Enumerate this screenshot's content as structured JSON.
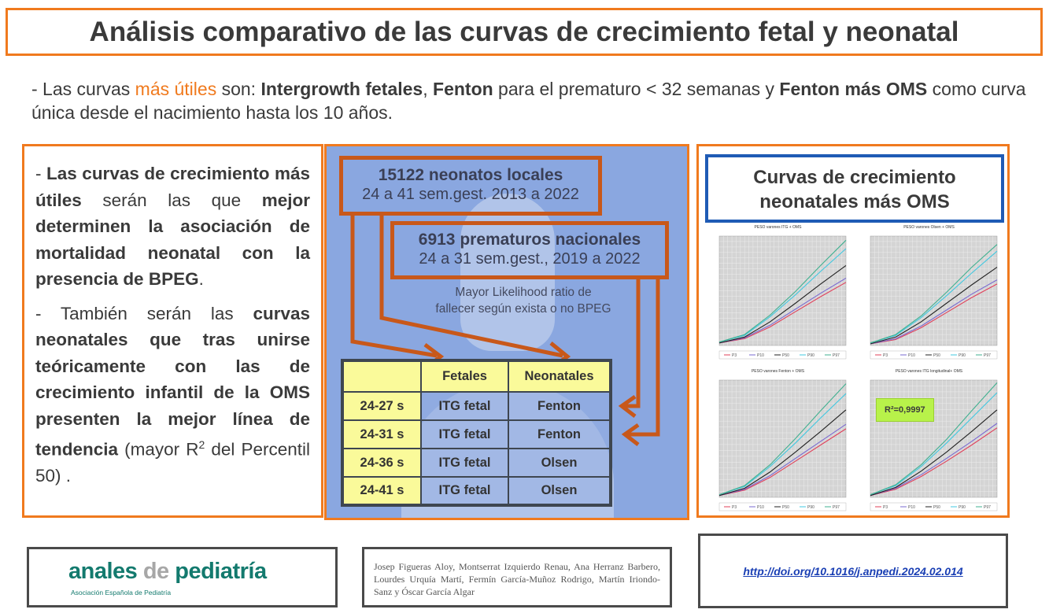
{
  "title": "Análisis comparativo de las curvas de crecimiento fetal y neonatal",
  "intro": {
    "p1": " - Las curvas ",
    "highlight": "más útiles",
    "p2": " son: ",
    "b1": "Intergrowth fetales",
    "p3": ", ",
    "b2": "Fenton",
    "p4": " para el prematuro < 32 semanas y ",
    "b3": "Fenton más OMS",
    "p5": " como curva única desde el nacimiento hasta los 10 años."
  },
  "left": {
    "a1": "- ",
    "a2": "Las curvas de crecimiento más útiles",
    "a3": " serán las que ",
    "a4": "mejor determinen la asociación de mortalidad neonatal con la presencia de BPEG",
    "a5": ".",
    "b1": "- También serán las ",
    "b2": "curvas neonatales que tras unirse teóricamente con las de crecimiento infantil de la OMS presenten la mejor línea de tendencia",
    "b3": " (mayor R",
    "b_sup": "2",
    "b4": " del Percentil 50) ."
  },
  "middle": {
    "box1": {
      "bold": "15122 neonatos locales",
      "normal": "24 a 41 sem.gest. 2013 a 2022"
    },
    "box2": {
      "bold": "6913 prematuros nacionales",
      "normal": "24 a 31 sem.gest., 2019 a 2022"
    },
    "likelihood": [
      "Mayor Likelihood ratio de",
      "fallecer según exista o no BPEG"
    ],
    "table": {
      "headers": [
        "",
        "Fetales",
        "Neonatales"
      ],
      "rows": [
        [
          "24-27 s",
          "ITG fetal",
          "Fenton"
        ],
        [
          "24-31 s",
          "ITG fetal",
          "Fenton"
        ],
        [
          "24-36 s",
          "ITG fetal",
          "Olsen"
        ],
        [
          "24-41 s",
          "ITG fetal",
          "Olsen"
        ]
      ]
    }
  },
  "right": {
    "title": [
      "Curvas de crecimiento",
      "neonatales más OMS"
    ],
    "r2_label": "R²=0,9997"
  },
  "chart_data": [
    {
      "type": "line",
      "title": "PESO varones ITG + OMS",
      "series": [
        {
          "name": "P3",
          "color": "#e0405a",
          "values": [
            3,
            8,
            22,
            40,
            58,
            75
          ]
        },
        {
          "name": "P10",
          "color": "#7a6ad0",
          "values": [
            3,
            9,
            24,
            43,
            62,
            80
          ]
        },
        {
          "name": "P50",
          "color": "#222222",
          "values": [
            3,
            10,
            28,
            50,
            73,
            95
          ]
        },
        {
          "name": "P90",
          "color": "#40c8e0",
          "values": [
            4,
            12,
            34,
            60,
            88,
            115
          ]
        },
        {
          "name": "P97",
          "color": "#40b090",
          "values": [
            4,
            13,
            36,
            64,
            95,
            125
          ]
        }
      ]
    },
    {
      "type": "line",
      "title": "PESO varones Olsen + OMS",
      "series": [
        {
          "name": "P3",
          "color": "#e0405a",
          "values": [
            2,
            7,
            21,
            39,
            57,
            73
          ]
        },
        {
          "name": "P10",
          "color": "#7a6ad0",
          "values": [
            2,
            8,
            23,
            42,
            61,
            78
          ]
        },
        {
          "name": "P50",
          "color": "#222222",
          "values": [
            2,
            10,
            28,
            50,
            72,
            93
          ]
        },
        {
          "name": "P90",
          "color": "#40c8e0",
          "values": [
            3,
            12,
            33,
            59,
            86,
            112
          ]
        },
        {
          "name": "P97",
          "color": "#40b090",
          "values": [
            3,
            13,
            35,
            63,
            93,
            120
          ]
        }
      ]
    },
    {
      "type": "line",
      "title": "PESO varones Fenton + OMS",
      "series": [
        {
          "name": "P3",
          "color": "#e0405a",
          "values": [
            2,
            8,
            22,
            40,
            58,
            76
          ]
        },
        {
          "name": "P10",
          "color": "#7a6ad0",
          "values": [
            2,
            9,
            24,
            43,
            62,
            81
          ]
        },
        {
          "name": "P50",
          "color": "#222222",
          "values": [
            2,
            10,
            28,
            50,
            73,
            97
          ]
        },
        {
          "name": "P90",
          "color": "#40c8e0",
          "values": [
            3,
            12,
            34,
            60,
            88,
            115
          ]
        },
        {
          "name": "P97",
          "color": "#40b090",
          "values": [
            3,
            13,
            36,
            65,
            96,
            126
          ]
        }
      ]
    },
    {
      "type": "line",
      "title": "PESO varones ITG longitudinal+ OMS",
      "series": [
        {
          "name": "P3",
          "color": "#e0405a",
          "values": [
            2,
            9,
            23,
            40,
            58,
            77
          ]
        },
        {
          "name": "P10",
          "color": "#7a6ad0",
          "values": [
            2,
            10,
            25,
            43,
            62,
            82
          ]
        },
        {
          "name": "P50",
          "color": "#222222",
          "values": [
            2,
            11,
            29,
            50,
            73,
            97
          ]
        },
        {
          "name": "P90",
          "color": "#40c8e0",
          "values": [
            3,
            13,
            34,
            60,
            88,
            116
          ]
        },
        {
          "name": "P97",
          "color": "#40b090",
          "values": [
            3,
            14,
            36,
            64,
            96,
            127
          ]
        }
      ]
    }
  ],
  "footer": {
    "logo_main_1": "anales ",
    "logo_main_2": "de",
    "logo_main_3": " pediatría",
    "logo_sub": "Asociación Española de Pediatría",
    "authors": "Josep Figueras Aloy, Montserrat Izquierdo Renau, Ana Herranz Barbero, Lourdes Urquía Martí, Fermín García-Muñoz Rodrigo, Martín Iriondo-Sanz y Óscar García Algar",
    "doi": "http://doi.org/10.1016/j.anpedi.2024.02.014"
  },
  "colors": {
    "accent": "#f07a1e",
    "arrow": "#c8581a",
    "panel": "#8aa7e0",
    "table_yellow": "#fafa9a",
    "title_border": "#1f5bb5",
    "brand": "#137a6e"
  }
}
